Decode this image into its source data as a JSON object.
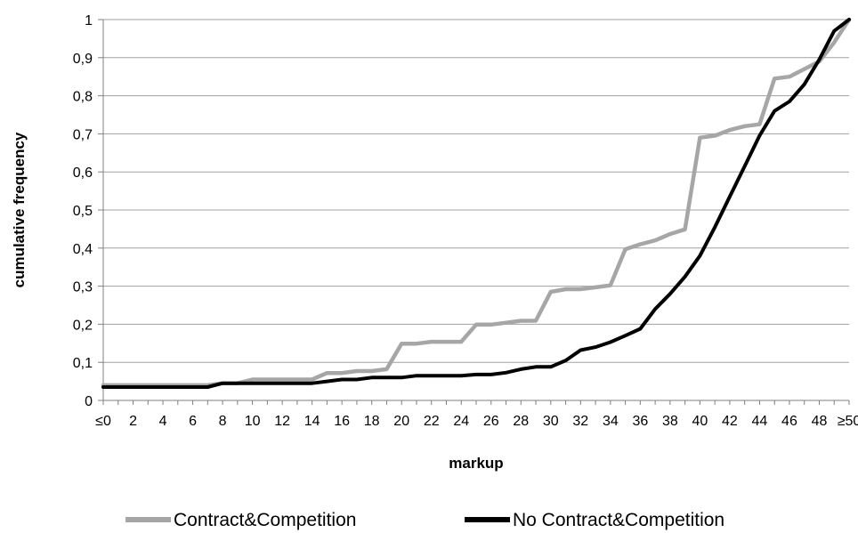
{
  "chart_data": {
    "type": "line",
    "title": "",
    "xlabel": "markup",
    "ylabel": "cumulative frequency",
    "x": [
      0,
      1,
      2,
      3,
      4,
      5,
      6,
      7,
      8,
      9,
      10,
      11,
      12,
      13,
      14,
      15,
      16,
      17,
      18,
      19,
      20,
      21,
      22,
      23,
      24,
      25,
      26,
      27,
      28,
      29,
      30,
      31,
      32,
      33,
      34,
      35,
      36,
      37,
      38,
      39,
      40,
      41,
      42,
      43,
      44,
      45,
      46,
      47,
      48,
      49,
      50
    ],
    "x_tick_values": [
      0,
      2,
      4,
      6,
      8,
      10,
      12,
      14,
      16,
      18,
      20,
      22,
      24,
      26,
      28,
      30,
      32,
      34,
      36,
      38,
      40,
      42,
      44,
      46,
      48,
      50
    ],
    "x_tick_labels": [
      "≤0",
      "2",
      "4",
      "6",
      "8",
      "10",
      "12",
      "14",
      "16",
      "18",
      "20",
      "22",
      "24",
      "26",
      "28",
      "30",
      "32",
      "34",
      "36",
      "38",
      "40",
      "42",
      "44",
      "46",
      "48",
      "≥50"
    ],
    "xlim": [
      0,
      50
    ],
    "ylim": [
      0,
      1
    ],
    "y_tick_values": [
      0,
      0.1,
      0.2,
      0.3,
      0.4,
      0.5,
      0.6,
      0.7,
      0.8,
      0.9,
      1
    ],
    "y_tick_labels": [
      "0",
      "0,1",
      "0,2",
      "0,3",
      "0,4",
      "0,5",
      "0,6",
      "0,7",
      "0,8",
      "0,9",
      "1"
    ],
    "grid": true,
    "legend_position": "bottom",
    "series": [
      {
        "name": "Contract&Competition",
        "color": "#a6a6a6",
        "values": [
          0.04,
          0.04,
          0.04,
          0.04,
          0.04,
          0.04,
          0.04,
          0.04,
          0.045,
          0.045,
          0.055,
          0.055,
          0.055,
          0.055,
          0.055,
          0.072,
          0.072,
          0.077,
          0.077,
          0.082,
          0.149,
          0.149,
          0.154,
          0.154,
          0.154,
          0.199,
          0.199,
          0.204,
          0.209,
          0.209,
          0.285,
          0.292,
          0.292,
          0.297,
          0.302,
          0.397,
          0.41,
          0.42,
          0.437,
          0.449,
          0.69,
          0.695,
          0.71,
          0.72,
          0.725,
          0.845,
          0.85,
          0.87,
          0.89,
          0.94,
          1.0
        ]
      },
      {
        "name": "No Contract&Competition",
        "color": "#000000",
        "values": [
          0.035,
          0.035,
          0.035,
          0.035,
          0.035,
          0.035,
          0.035,
          0.035,
          0.045,
          0.045,
          0.045,
          0.045,
          0.045,
          0.045,
          0.045,
          0.05,
          0.055,
          0.055,
          0.06,
          0.06,
          0.06,
          0.065,
          0.065,
          0.065,
          0.065,
          0.068,
          0.068,
          0.073,
          0.082,
          0.088,
          0.088,
          0.105,
          0.132,
          0.14,
          0.153,
          0.17,
          0.188,
          0.24,
          0.28,
          0.325,
          0.38,
          0.455,
          0.535,
          0.615,
          0.695,
          0.76,
          0.785,
          0.83,
          0.895,
          0.97,
          1.0
        ]
      }
    ]
  }
}
